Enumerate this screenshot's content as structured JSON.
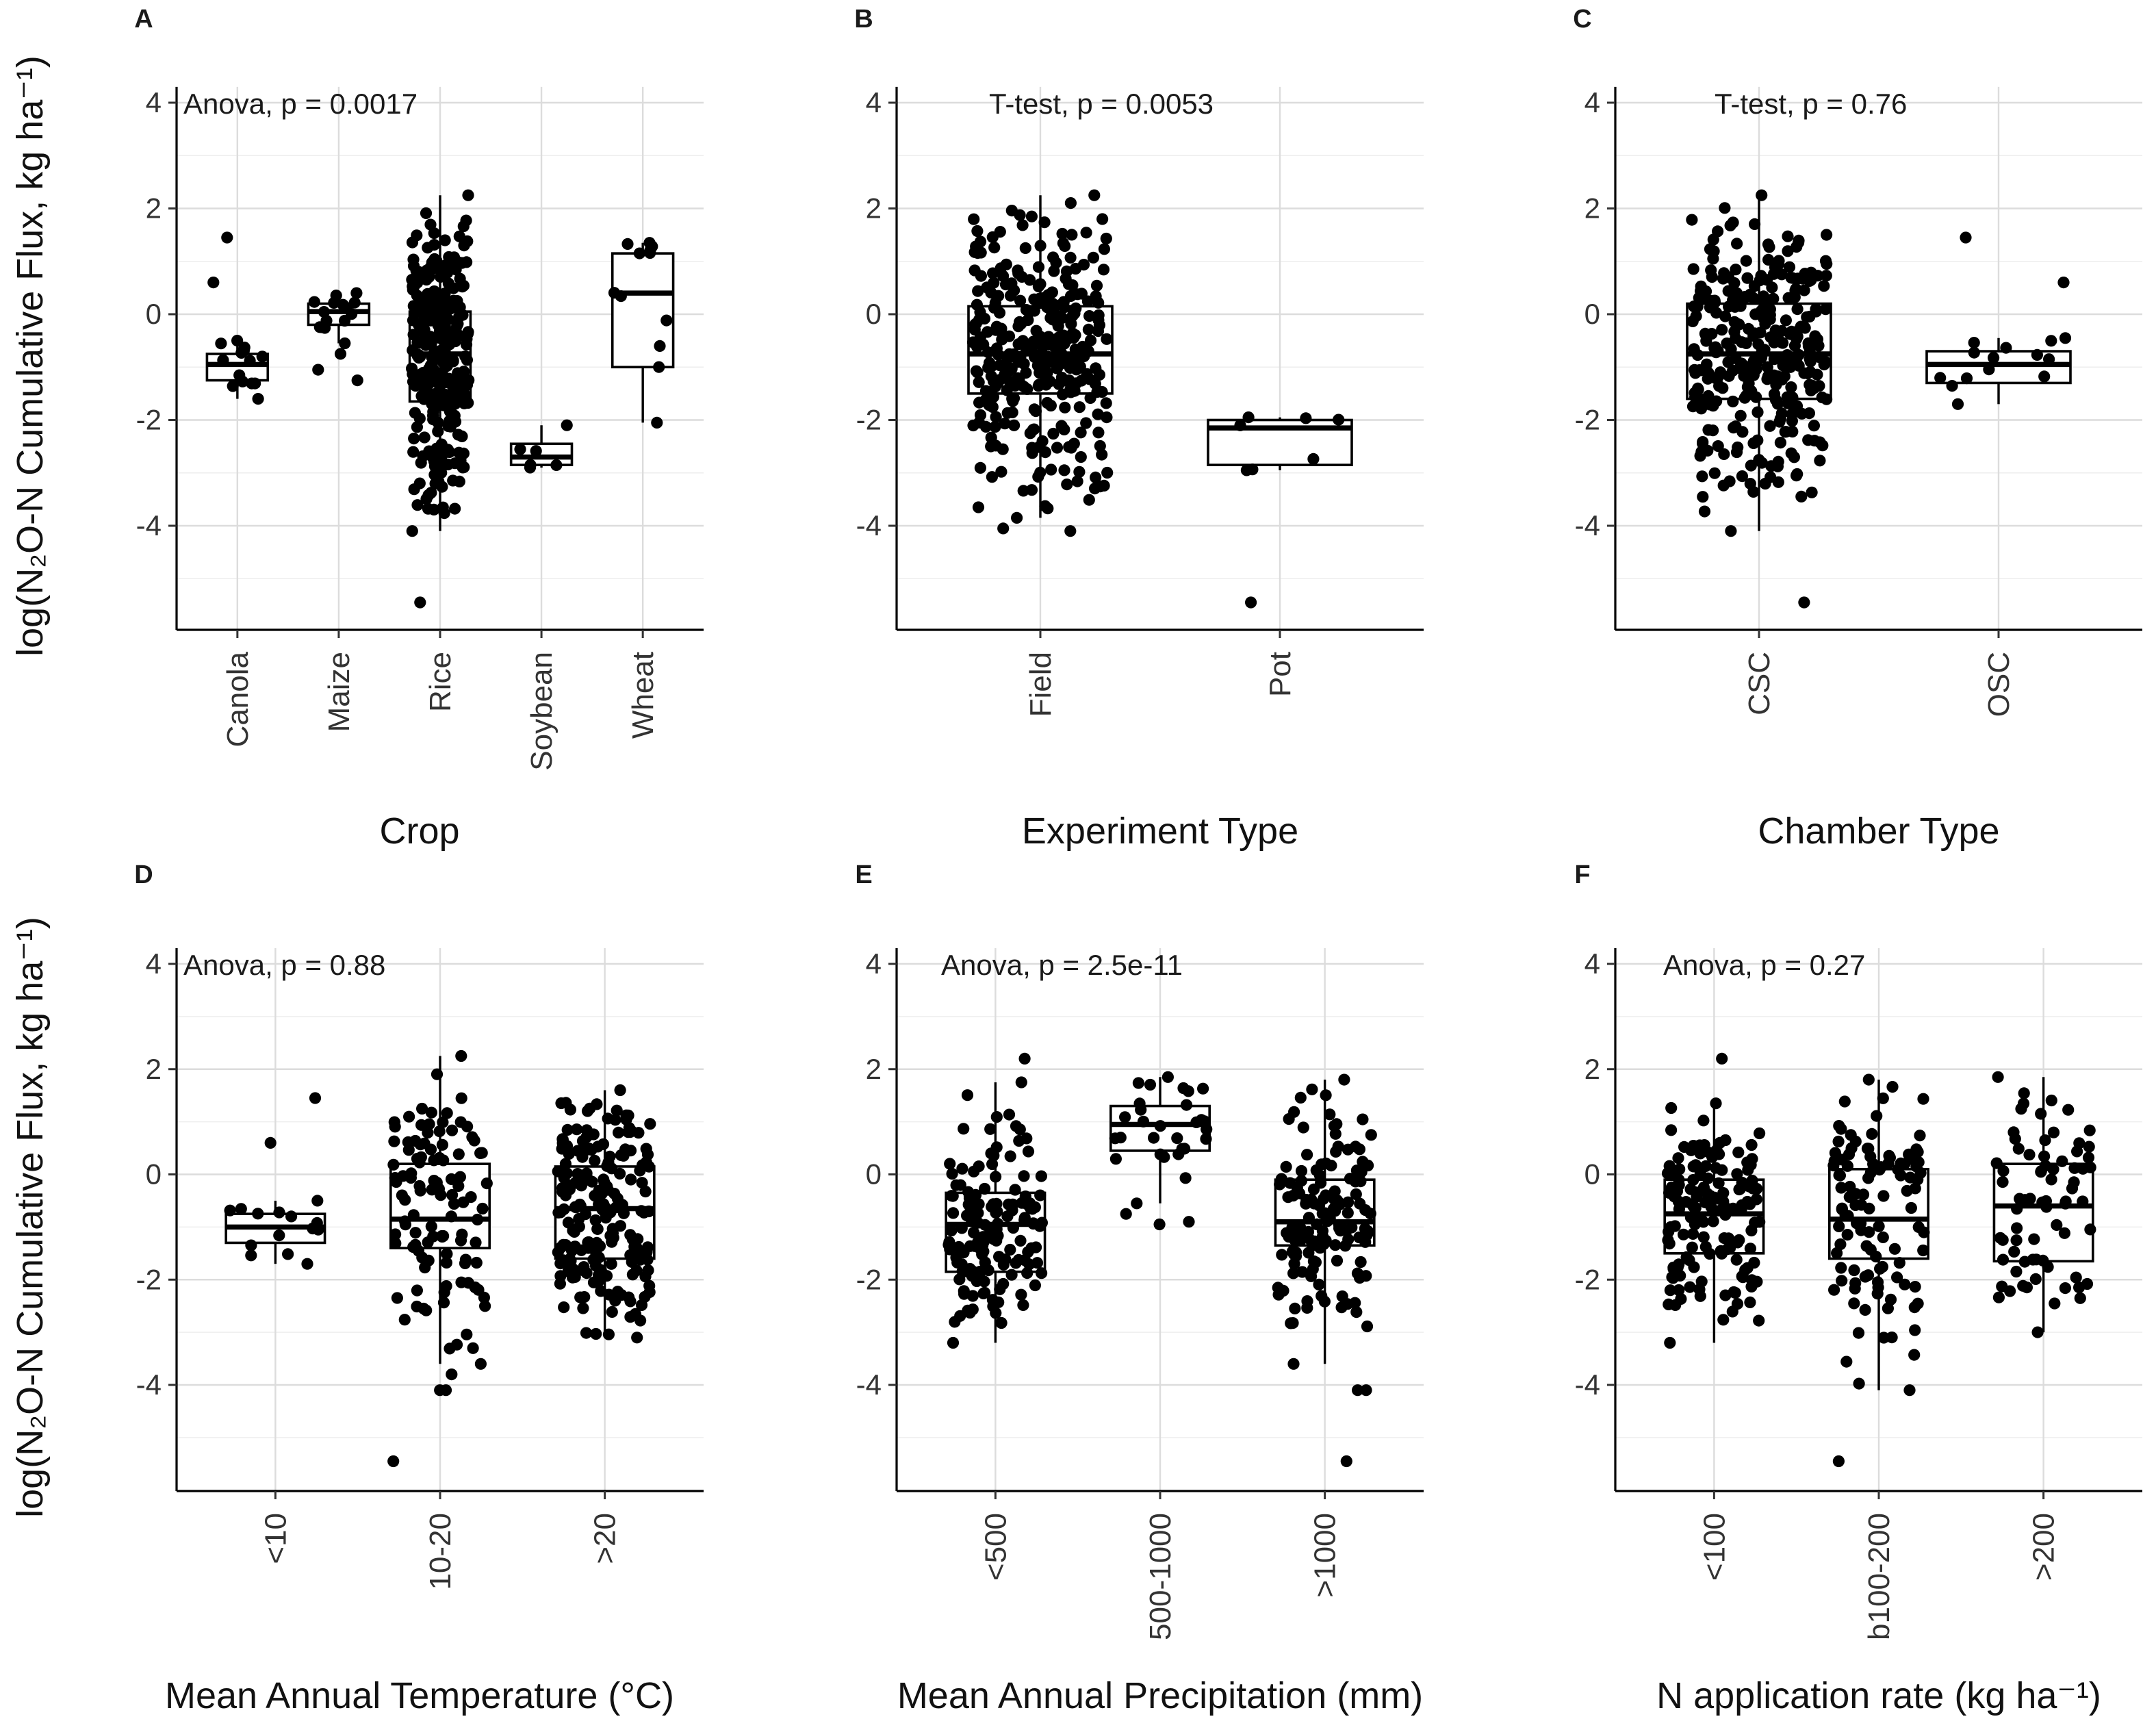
{
  "figure": {
    "ylabel": "log(N₂O-N Cumulative Flux, kg ha⁻¹)"
  },
  "chart_data": [
    {
      "type": "boxplot",
      "panel": "A",
      "annotation": "Anova, p = 0.0017",
      "xlabel": "Crop",
      "ylim": [
        -5.8,
        4.3
      ],
      "yticks": [
        -4,
        -2,
        0,
        2,
        4
      ],
      "tick_labels": [
        "-4",
        "-2",
        "0",
        "2",
        "4"
      ],
      "groups": [
        {
          "category": "Canola",
          "q1": -1.25,
          "median": -0.95,
          "q3": -0.75,
          "wlo": -1.6,
          "whi": -0.5,
          "outliers": [
            1.45,
            0.6
          ],
          "n": 14
        },
        {
          "category": "Maize",
          "q1": -0.2,
          "median": 0.05,
          "q3": 0.2,
          "wlo": -0.55,
          "whi": 0.4,
          "outliers": [
            -1.25,
            -1.05,
            -0.75
          ],
          "n": 16
        },
        {
          "category": "Rice",
          "q1": -1.65,
          "median": -0.75,
          "q3": 0.05,
          "wlo": -4.1,
          "whi": 2.25,
          "outliers": [
            -5.45
          ],
          "n": 280
        },
        {
          "category": "Soybean",
          "q1": -2.85,
          "median": -2.7,
          "q3": -2.45,
          "wlo": -2.9,
          "whi": -2.1,
          "outliers": [],
          "n": 4
        },
        {
          "category": "Wheat",
          "q1": -1.0,
          "median": 0.4,
          "q3": 1.15,
          "wlo": -2.05,
          "whi": 1.35,
          "outliers": [],
          "n": 10
        }
      ]
    },
    {
      "type": "boxplot",
      "panel": "B",
      "annotation": "T-test, p = 0.0053",
      "xlabel": "Experiment Type",
      "ylim": [
        -5.8,
        4.3
      ],
      "yticks": [
        -4,
        -2,
        0,
        2,
        4
      ],
      "tick_labels": [
        "-4",
        "-2",
        "0",
        "2",
        "4"
      ],
      "groups": [
        {
          "category": "Field",
          "q1": -1.5,
          "median": -0.75,
          "q3": 0.15,
          "wlo": -3.85,
          "whi": 2.25,
          "outliers": [
            -4.1,
            -4.05
          ],
          "n": 320
        },
        {
          "category": "Pot",
          "q1": -2.85,
          "median": -2.15,
          "q3": -2.0,
          "wlo": -2.95,
          "whi": -1.95,
          "outliers": [
            -5.45
          ],
          "n": 6
        }
      ]
    },
    {
      "type": "boxplot",
      "panel": "C",
      "annotation": "T-test, p = 0.76",
      "xlabel": "Chamber Type",
      "ylim": [
        -5.8,
        4.3
      ],
      "yticks": [
        -4,
        -2,
        0,
        2,
        4
      ],
      "tick_labels": [
        "-4",
        "-2",
        "0",
        "2",
        "4"
      ],
      "groups": [
        {
          "category": "CSC",
          "q1": -1.6,
          "median": -0.75,
          "q3": 0.2,
          "wlo": -4.1,
          "whi": 2.25,
          "outliers": [
            -5.45
          ],
          "n": 310
        },
        {
          "category": "OSC",
          "q1": -1.3,
          "median": -0.95,
          "q3": -0.7,
          "wlo": -1.7,
          "whi": -0.45,
          "outliers": [
            1.45,
            0.6
          ],
          "n": 14
        }
      ]
    },
    {
      "type": "boxplot",
      "panel": "D",
      "annotation": "Anova, p = 0.88",
      "xlabel": "Mean Annual Temperature (°C)",
      "ylim": [
        -5.8,
        4.3
      ],
      "yticks": [
        -4,
        -2,
        0,
        2,
        4
      ],
      "tick_labels": [
        "-4",
        "-2",
        "0",
        "2",
        "4"
      ],
      "groups": [
        {
          "category": "<10",
          "q1": -1.3,
          "median": -1.0,
          "q3": -0.75,
          "wlo": -1.7,
          "whi": -0.5,
          "outliers": [
            1.45,
            0.6
          ],
          "n": 14
        },
        {
          "category": "10-20",
          "q1": -1.4,
          "median": -0.85,
          "q3": 0.2,
          "wlo": -3.6,
          "whi": 2.25,
          "outliers": [
            -4.1,
            -4.1,
            -3.8,
            -5.45
          ],
          "n": 110
        },
        {
          "category": ">20",
          "q1": -1.6,
          "median": -0.65,
          "q3": 0.15,
          "wlo": -3.1,
          "whi": 1.6,
          "outliers": [],
          "n": 200
        }
      ]
    },
    {
      "type": "boxplot",
      "panel": "E",
      "annotation": "Anova, p = 2.5e-11",
      "xlabel": "Mean Annual Precipitation (mm)",
      "ylim": [
        -5.8,
        4.3
      ],
      "yticks": [
        -4,
        -2,
        0,
        2,
        4
      ],
      "tick_labels": [
        "-4",
        "-2",
        "0",
        "2",
        "4"
      ],
      "groups": [
        {
          "category": "<500",
          "q1": -1.85,
          "median": -0.95,
          "q3": -0.35,
          "wlo": -3.2,
          "whi": 1.75,
          "outliers": [
            2.2
          ],
          "n": 150
        },
        {
          "category": "500-1000",
          "q1": 0.45,
          "median": 0.95,
          "q3": 1.3,
          "wlo": -0.55,
          "whi": 1.85,
          "outliers": [
            -0.75,
            -0.9,
            -0.95
          ],
          "n": 30
        },
        {
          "category": ">1000",
          "q1": -1.35,
          "median": -0.9,
          "q3": -0.1,
          "wlo": -3.6,
          "whi": 1.8,
          "outliers": [
            -4.1,
            -4.1,
            -5.45
          ],
          "n": 140
        }
      ]
    },
    {
      "type": "boxplot",
      "panel": "F",
      "annotation": "Anova, p = 0.27",
      "xlabel": "N application rate (kg ha⁻¹)",
      "ylim": [
        -5.8,
        4.3
      ],
      "yticks": [
        -4,
        -2,
        0,
        2,
        4
      ],
      "tick_labels": [
        "-4",
        "-2",
        "0",
        "2",
        "4"
      ],
      "groups": [
        {
          "category": "<100",
          "q1": -1.5,
          "median": -0.75,
          "q3": -0.1,
          "wlo": -3.2,
          "whi": 1.35,
          "outliers": [
            2.2
          ],
          "n": 150
        },
        {
          "category": "b100-200",
          "q1": -1.6,
          "median": -0.85,
          "q3": 0.1,
          "wlo": -4.1,
          "whi": 1.8,
          "outliers": [
            -5.45
          ],
          "n": 110
        },
        {
          "category": ">200",
          "q1": -1.65,
          "median": -0.6,
          "q3": 0.2,
          "wlo": -3.0,
          "whi": 1.85,
          "outliers": [],
          "n": 70
        }
      ]
    }
  ]
}
